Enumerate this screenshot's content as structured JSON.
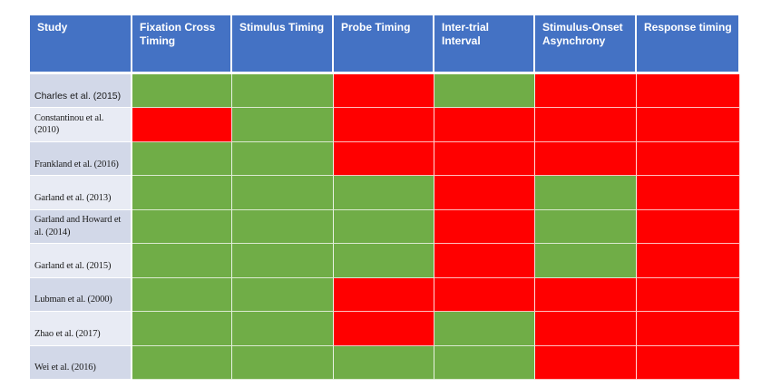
{
  "chart_data": {
    "type": "heatmap",
    "title": "",
    "columns": [
      "Study",
      "Fixation Cross Timing",
      "Stimulus Timing",
      "Probe Timing",
      "Inter-trial Interval",
      "Stimulus-Onset Asynchrony",
      "Response timing"
    ],
    "rows": [
      "Charles et al. (2015)",
      "Constantinou et al. (2010)",
      "Frankland et al. (2016)",
      "Garland et al. (2013)",
      "Garland and Howard et al. (2014)",
      "Garland et al. (2015)",
      "Lubman et al. (2000)",
      "Zhao et al. (2017)",
      "Wei et al. (2016)"
    ],
    "values": [
      [
        "green",
        "green",
        "red",
        "green",
        "red",
        "red"
      ],
      [
        "red",
        "green",
        "red",
        "red",
        "red",
        "red"
      ],
      [
        "green",
        "green",
        "red",
        "red",
        "red",
        "red"
      ],
      [
        "green",
        "green",
        "green",
        "red",
        "green",
        "red"
      ],
      [
        "green",
        "green",
        "green",
        "red",
        "green",
        "red"
      ],
      [
        "green",
        "green",
        "green",
        "red",
        "green",
        "red"
      ],
      [
        "green",
        "green",
        "red",
        "red",
        "red",
        "red"
      ],
      [
        "green",
        "green",
        "red",
        "green",
        "red",
        "red"
      ],
      [
        "green",
        "green",
        "green",
        "green",
        "red",
        "red"
      ]
    ],
    "palette": {
      "green": "#70AD47",
      "red": "#FF0000"
    },
    "legend_position": "none",
    "grid": true
  },
  "colors": {
    "page_bg": "#FFFFFF",
    "header_bg": "#4472C4",
    "header_text": "#FFFFFF",
    "green": "#70AD47",
    "red": "#FF0000",
    "band_dark": "#D2D8E8",
    "band_light": "#E8EBF4",
    "gridline": "#FFFFFF",
    "study_text": "#1A1A1A"
  }
}
